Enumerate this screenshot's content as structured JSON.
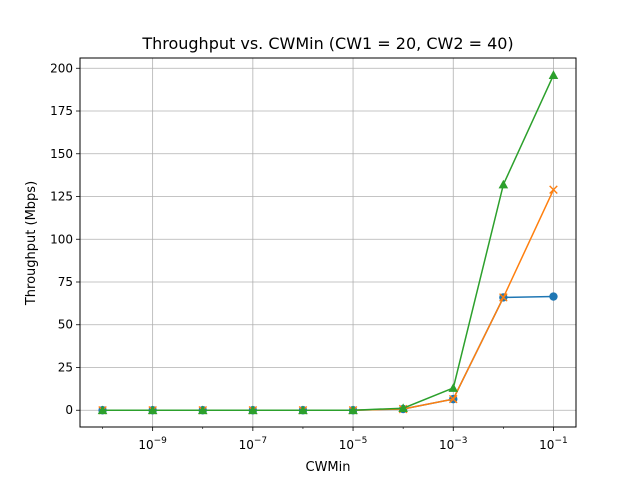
{
  "chart_data": {
    "type": "line",
    "title": "Throughput vs. CWMin (CW1 = 20, CW2 = 40)",
    "xlabel": "CWMin",
    "ylabel": "Throughput (Mbps)",
    "xscale": "log",
    "xlim": [
      1e-10,
      0.1
    ],
    "ylim": [
      0,
      200
    ],
    "grid": true,
    "x": [
      1e-10,
      1e-09,
      1e-08,
      1e-07,
      1e-06,
      1e-05,
      0.0001,
      0.001,
      0.01,
      0.1
    ],
    "x_tick_values": [
      1e-09,
      1e-07,
      1e-05,
      0.001,
      0.1
    ],
    "x_tick_labels": [
      {
        "base": "10",
        "exp": "−9"
      },
      {
        "base": "10",
        "exp": "−7"
      },
      {
        "base": "10",
        "exp": "−5"
      },
      {
        "base": "10",
        "exp": "−3"
      },
      {
        "base": "10",
        "exp": "−1"
      }
    ],
    "y_ticks": [
      0,
      25,
      50,
      75,
      100,
      125,
      150,
      175,
      200
    ],
    "series": [
      {
        "color": "#1f77b4",
        "marker": "circle",
        "values": [
          0,
          0,
          0,
          0,
          0,
          0,
          0.7,
          6.5,
          66,
          66.5
        ]
      },
      {
        "color": "#ff7f0e",
        "marker": "x",
        "values": [
          0,
          0,
          0,
          0,
          0,
          0,
          0.7,
          6.5,
          66,
          129
        ]
      },
      {
        "color": "#2ca02c",
        "marker": "triangle",
        "values": [
          0,
          0,
          0,
          0,
          0,
          0,
          1.2,
          13,
          132,
          196
        ]
      }
    ]
  }
}
